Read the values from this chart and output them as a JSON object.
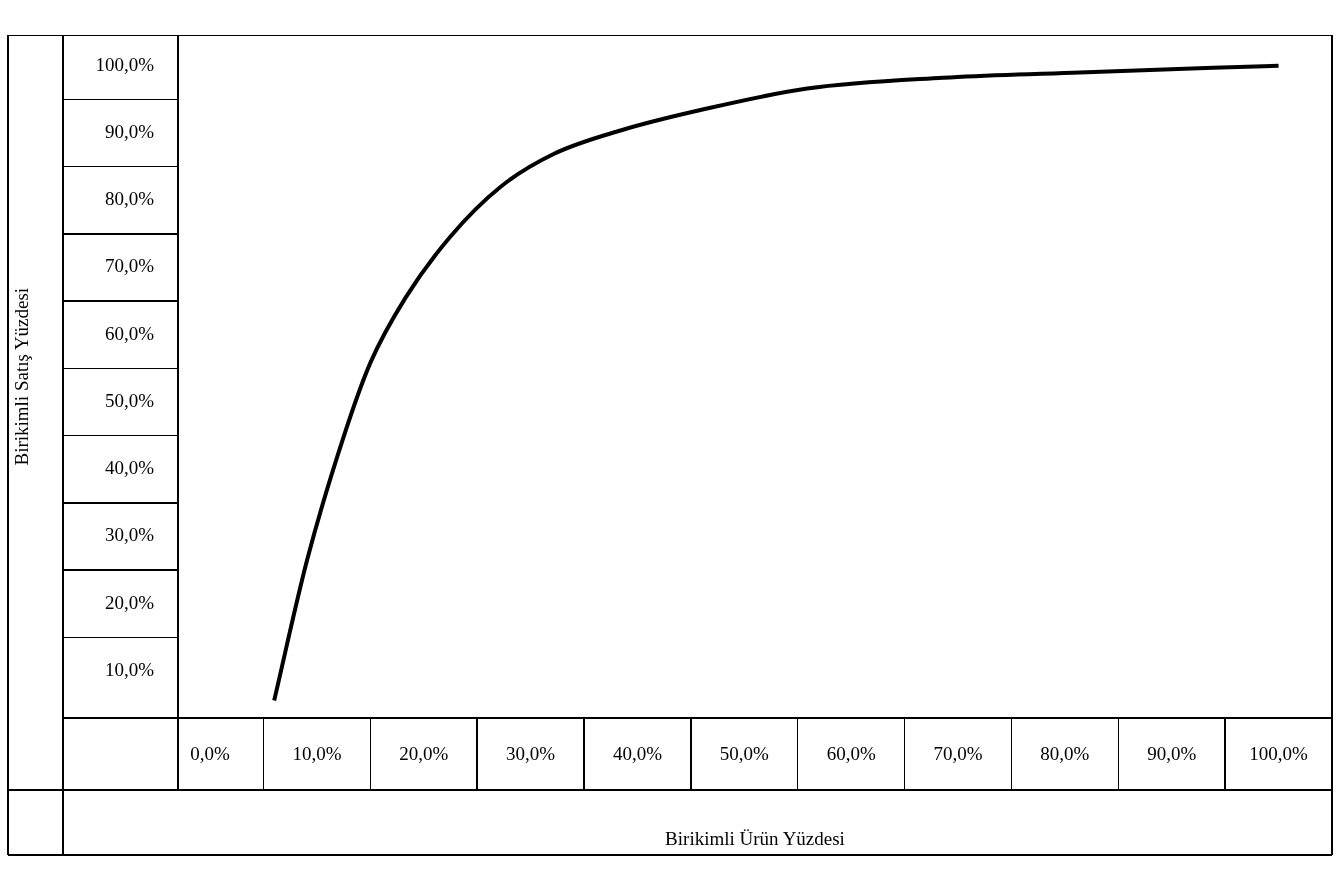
{
  "chart_data": {
    "type": "line",
    "xlabel": "Birikimli Ürün Yüzdesi",
    "ylabel": "Birikimli Satış Yüzdesi",
    "x": [
      6.0,
      9.1,
      12.5,
      15.0,
      18.3,
      22.5,
      27.2,
      32.2,
      38.5,
      45.9,
      55.9,
      68.6,
      81.4,
      100
    ],
    "series": [
      {
        "color": "#000000",
        "values": [
          5.6,
          26.6,
          44.8,
          55.8,
          65.5,
          74.6,
          82.0,
          86.9,
          90.4,
          93.4,
          96.6,
          98.2,
          99.0,
          100.0
        ]
      }
    ],
    "xlim": [
      -3,
      105
    ],
    "ylim": [
      3,
      104.5
    ],
    "xticks": [
      {
        "value": 0,
        "label": "0,0%"
      },
      {
        "value": 10,
        "label": "10,0%"
      },
      {
        "value": 20,
        "label": "20,0%"
      },
      {
        "value": 30,
        "label": "30,0%"
      },
      {
        "value": 40,
        "label": "40,0%"
      },
      {
        "value": 50,
        "label": "50,0%"
      },
      {
        "value": 60,
        "label": "60,0%"
      },
      {
        "value": 70,
        "label": "70,0%"
      },
      {
        "value": 80,
        "label": "80,0%"
      },
      {
        "value": 90,
        "label": "90,0%"
      },
      {
        "value": 100,
        "label": "100,0%"
      }
    ],
    "yticks": [
      {
        "value": 10,
        "label": "10,0%"
      },
      {
        "value": 20,
        "label": "20,0%"
      },
      {
        "value": 30,
        "label": "30,0%"
      },
      {
        "value": 40,
        "label": "40,0%"
      },
      {
        "value": 50,
        "label": "50,0%"
      },
      {
        "value": 60,
        "label": "60,0%"
      },
      {
        "value": 70,
        "label": "70,0%"
      },
      {
        "value": 80,
        "label": "80,0%"
      },
      {
        "value": 90,
        "label": "90,0%"
      },
      {
        "value": 100,
        "label": "100,0%"
      }
    ],
    "grid": false,
    "legend": false,
    "marker": "none",
    "line_style": "solid"
  }
}
